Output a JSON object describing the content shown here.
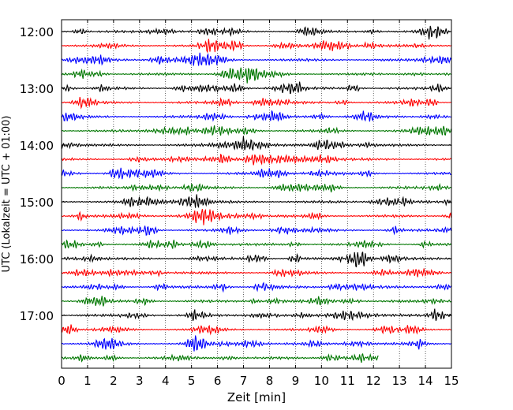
{
  "chart_data": {
    "type": "line",
    "title": "",
    "xlabel": "Zeit  [min]",
    "ylabel": "UTC (Lokalzeit = UTC + 01:00)",
    "xlim": [
      0,
      15
    ],
    "x_ticks": [
      "0",
      "1",
      "2",
      "3",
      "4",
      "5",
      "6",
      "7",
      "8",
      "9",
      "10",
      "11",
      "12",
      "13",
      "14",
      "15"
    ],
    "y_ticks": [
      "12:00",
      "13:00",
      "14:00",
      "15:00",
      "16:00",
      "17:00"
    ],
    "row_interval_min": 15,
    "grid": "vertical dotted at each minute",
    "trace_colors": [
      "#000000",
      "#ff0000",
      "#0000ff",
      "#007700"
    ],
    "series": [
      {
        "start": "12:00",
        "x_end": 15
      },
      {
        "start": "12:15",
        "x_end": 15
      },
      {
        "start": "12:30",
        "x_end": 15
      },
      {
        "start": "12:45",
        "x_end": 15
      },
      {
        "start": "13:00",
        "x_end": 15
      },
      {
        "start": "13:15",
        "x_end": 15
      },
      {
        "start": "13:30",
        "x_end": 15
      },
      {
        "start": "13:45",
        "x_end": 15
      },
      {
        "start": "14:00",
        "x_end": 15
      },
      {
        "start": "14:15",
        "x_end": 15
      },
      {
        "start": "14:30",
        "x_end": 15
      },
      {
        "start": "14:45",
        "x_end": 15
      },
      {
        "start": "15:00",
        "x_end": 15
      },
      {
        "start": "15:15",
        "x_end": 15
      },
      {
        "start": "15:30",
        "x_end": 15
      },
      {
        "start": "15:45",
        "x_end": 15
      },
      {
        "start": "16:00",
        "x_end": 15
      },
      {
        "start": "16:15",
        "x_end": 15
      },
      {
        "start": "16:30",
        "x_end": 15
      },
      {
        "start": "16:45",
        "x_end": 15
      },
      {
        "start": "17:00",
        "x_end": 15
      },
      {
        "start": "17:15",
        "x_end": 15
      },
      {
        "start": "17:30",
        "x_end": 15
      },
      {
        "start": "17:45",
        "x_end": 12.2
      }
    ]
  }
}
